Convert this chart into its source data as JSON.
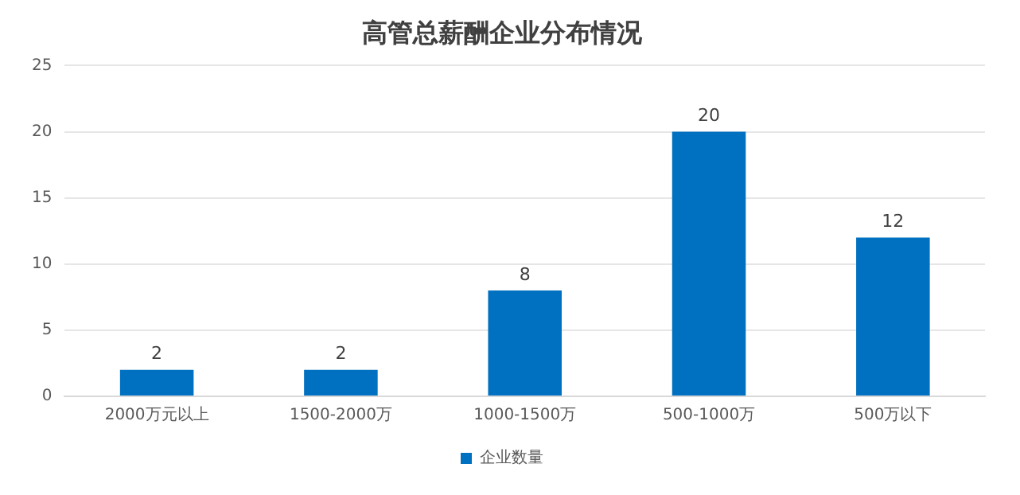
{
  "chart_data": {
    "type": "bar",
    "title": "高管总薪酬企业分布情况",
    "categories": [
      "2000万元以上",
      "1500-2000万",
      "1000-1500万",
      "500-1000万",
      "500万以下"
    ],
    "series": [
      {
        "name": "企业数量",
        "color": "#0070c0",
        "values": [
          2,
          2,
          8,
          20,
          12
        ]
      }
    ],
    "ylim": [
      0,
      25
    ],
    "yticks": [
      0,
      5,
      10,
      15,
      20,
      25
    ],
    "grid": "y",
    "legend": "bottom",
    "data_labels": true
  }
}
